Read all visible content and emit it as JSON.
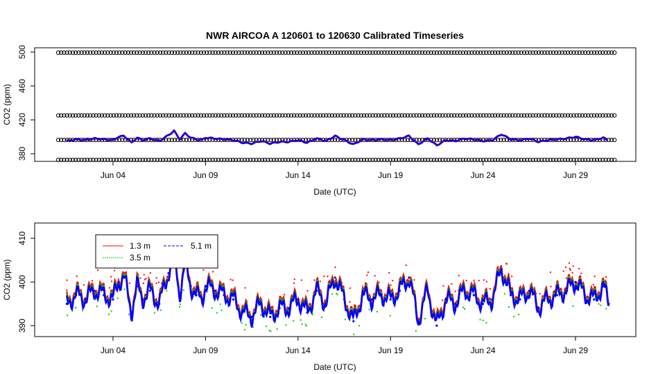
{
  "chart_data": [
    {
      "type": "scatter",
      "title": "NWR   AIRCOA  A   120601  to  120630   Calibrated Timeseries",
      "xlabel": "Date (UTC)",
      "ylabel": "CO2 (ppm)",
      "x_range_days": [
        1.0,
        31.0
      ],
      "ylim": [
        371,
        505
      ],
      "x_tick_days": [
        4,
        9,
        14,
        19,
        24,
        29
      ],
      "x_tick_labels": [
        "Jun 04",
        "Jun 09",
        "Jun 14",
        "Jun 19",
        "Jun 24",
        "Jun 29"
      ],
      "y_ticks": [
        380,
        420,
        460,
        500
      ],
      "y_tick_labels": [
        "380",
        "420",
        "460",
        "500"
      ],
      "calibration_levels": [
        372.8,
        396.3,
        425.2,
        499.3
      ],
      "series_colors": {
        "cal": "#000000",
        "1.3 m": "#ff0000",
        "3.5 m": "#00cc00",
        "5.1 m": "#0000ff"
      }
    },
    {
      "type": "scatter",
      "xlabel": "Date (UTC)",
      "ylabel": "CO2 (ppm)",
      "x_range_days": [
        1.0,
        31.0
      ],
      "ylim": [
        387.5,
        413.5
      ],
      "x_tick_days": [
        4,
        9,
        14,
        19,
        24,
        29
      ],
      "x_tick_labels": [
        "Jun 04",
        "Jun 09",
        "Jun 14",
        "Jun 19",
        "Jun 24",
        "Jun 29"
      ],
      "y_ticks": [
        390,
        400,
        410
      ],
      "y_tick_labels": [
        "390",
        "400",
        "410"
      ],
      "legend": {
        "position": "top-left",
        "entries": [
          {
            "label": "1.3 m",
            "color": "#ff0000"
          },
          {
            "label": "3.5 m",
            "color": "#00cc00"
          },
          {
            "label": "5.1 m",
            "color": "#0000ff"
          }
        ]
      },
      "series": [
        {
          "name": "5.1 m",
          "color": "#0000ff",
          "x": [
            1.5,
            2.0,
            2.5,
            3.0,
            3.5,
            4.0,
            4.3,
            4.6,
            5.0,
            5.3,
            5.6,
            6.0,
            6.5,
            7.0,
            7.3,
            7.6,
            7.9,
            8.2,
            8.5,
            8.8,
            9.0,
            9.5,
            10.0,
            10.5,
            11.0,
            11.5,
            12.0,
            12.5,
            13.0,
            13.5,
            14.0,
            14.5,
            15.0,
            15.5,
            16.0,
            16.5,
            17.0,
            17.5,
            18.0,
            18.5,
            19.0,
            19.5,
            20.0,
            20.5,
            21.0,
            21.5,
            22.0,
            22.5,
            23.0,
            23.5,
            24.0,
            24.5,
            25.0,
            25.5,
            26.0,
            26.5,
            27.0,
            27.5,
            28.0,
            28.5,
            29.0,
            29.5,
            30.0,
            30.5,
            30.8
          ],
          "y": [
            395,
            397,
            396,
            398,
            397,
            396,
            400,
            401,
            393,
            399,
            396,
            398,
            395,
            402,
            407,
            397,
            404,
            399,
            397,
            396,
            399,
            398,
            397,
            396,
            393,
            392,
            395,
            392,
            394,
            394,
            396,
            393,
            398,
            395,
            401,
            396,
            391,
            397,
            396,
            397,
            396,
            398,
            401,
            391,
            398,
            390,
            396,
            395,
            398,
            397,
            395,
            396,
            403,
            397,
            396,
            398,
            394,
            396,
            397,
            398,
            400,
            397,
            396,
            399,
            395
          ]
        }
      ]
    }
  ]
}
